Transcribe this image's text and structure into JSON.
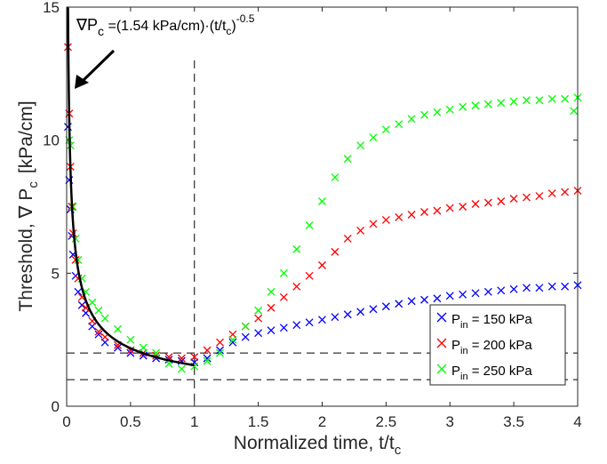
{
  "chart_data": {
    "type": "scatter",
    "title": "",
    "xlabel": "Normalized time, t/t",
    "xlabel_sub": "c",
    "ylabel": "Threshold, ∇ P",
    "ylabel_sub": "c",
    "ylabel_unit": "[kPa/cm]",
    "xlim": [
      0,
      4
    ],
    "ylim": [
      0,
      15
    ],
    "xticks": [
      "0",
      "0.5",
      "1",
      "1.5",
      "2",
      "2.5",
      "3",
      "3.5",
      "4"
    ],
    "yticks": [
      "0",
      "5",
      "10",
      "15"
    ],
    "grid": false,
    "legend_position": "bottom-right",
    "annotation": {
      "lhs": "∇P",
      "lhs_sub": "c",
      "rhs": " =(1.54 kPa/cm)·(t/t",
      "rhs_sub": "c",
      "rhs_close": ")",
      "rhs_exp": "-0.5"
    },
    "reference_lines": {
      "vertical_x": 1,
      "horizontal_y": [
        2,
        1
      ]
    },
    "fit": {
      "name": "",
      "color": "#000000",
      "coef": 1.54,
      "exponent": -0.5,
      "x_range": [
        0.0105,
        1
      ]
    },
    "series": [
      {
        "legend_main": "P",
        "legend_sub": "in",
        "legend_rest": " = 150 kPa",
        "color": "#0000ff",
        "x": [
          0.01,
          0.02,
          0.03,
          0.04,
          0.05,
          0.07,
          0.09,
          0.12,
          0.15,
          0.2,
          0.25,
          0.3,
          0.4,
          0.5,
          0.6,
          0.7,
          0.8,
          0.9,
          1.0,
          1.1,
          1.2,
          1.3,
          1.4,
          1.5,
          1.6,
          1.7,
          1.8,
          1.9,
          2.0,
          2.1,
          2.2,
          2.3,
          2.4,
          2.5,
          2.6,
          2.7,
          2.8,
          2.9,
          3.0,
          3.1,
          3.2,
          3.3,
          3.4,
          3.5,
          3.6,
          3.7,
          3.8,
          3.9,
          4.0
        ],
        "y": [
          10.5,
          8.5,
          7.4,
          6.4,
          5.7,
          4.9,
          4.3,
          3.8,
          3.5,
          3.0,
          2.7,
          2.4,
          2.2,
          2.0,
          1.9,
          1.8,
          1.75,
          1.7,
          1.65,
          1.8,
          2.1,
          2.4,
          2.6,
          2.75,
          2.85,
          2.95,
          3.05,
          3.15,
          3.25,
          3.35,
          3.45,
          3.55,
          3.65,
          3.75,
          3.85,
          3.95,
          4.0,
          4.05,
          4.15,
          4.2,
          4.25,
          4.3,
          4.35,
          4.4,
          4.45,
          4.45,
          4.5,
          4.5,
          4.55
        ]
      },
      {
        "legend_main": "P",
        "legend_sub": "in",
        "legend_rest": " = 200 kPa",
        "color": "#ff0000",
        "x": [
          0.01,
          0.02,
          0.03,
          0.04,
          0.05,
          0.07,
          0.09,
          0.12,
          0.15,
          0.2,
          0.25,
          0.3,
          0.4,
          0.5,
          0.6,
          0.7,
          0.8,
          0.9,
          1.0,
          1.1,
          1.2,
          1.3,
          1.4,
          1.5,
          1.6,
          1.7,
          1.8,
          1.9,
          2.0,
          2.1,
          2.2,
          2.3,
          2.4,
          2.5,
          2.6,
          2.7,
          2.8,
          2.9,
          3.0,
          3.1,
          3.2,
          3.3,
          3.4,
          3.5,
          3.6,
          3.7,
          3.8,
          3.9,
          4.0
        ],
        "y": [
          13.5,
          11.0,
          9.0,
          7.5,
          6.5,
          5.5,
          4.8,
          4.1,
          3.7,
          3.2,
          2.8,
          2.6,
          2.3,
          2.1,
          2.0,
          1.9,
          1.85,
          1.8,
          1.85,
          2.1,
          2.4,
          2.7,
          3.0,
          3.3,
          3.7,
          4.1,
          4.5,
          4.9,
          5.3,
          5.8,
          6.3,
          6.6,
          6.85,
          7.0,
          7.1,
          7.2,
          7.3,
          7.35,
          7.45,
          7.5,
          7.6,
          7.65,
          7.7,
          7.8,
          7.85,
          7.9,
          8.0,
          8.05,
          8.1
        ]
      },
      {
        "legend_main": "P",
        "legend_sub": "in",
        "legend_rest": " = 250 kPa",
        "color": "#00ff00",
        "x": [
          0.02,
          0.03,
          0.05,
          0.07,
          0.09,
          0.12,
          0.15,
          0.2,
          0.25,
          0.3,
          0.4,
          0.5,
          0.6,
          0.7,
          0.8,
          0.9,
          1.0,
          1.1,
          1.2,
          1.3,
          1.4,
          1.5,
          1.6,
          1.7,
          1.8,
          1.9,
          2.0,
          2.1,
          2.2,
          2.3,
          2.4,
          2.5,
          2.6,
          2.7,
          2.8,
          2.9,
          3.0,
          3.1,
          3.2,
          3.3,
          3.4,
          3.5,
          3.6,
          3.7,
          3.8,
          3.9,
          3.97,
          4.0
        ],
        "y": [
          10.0,
          9.8,
          7.5,
          6.3,
          5.5,
          4.8,
          4.3,
          3.9,
          3.6,
          3.3,
          2.9,
          2.5,
          2.2,
          2.0,
          1.6,
          1.4,
          1.5,
          1.7,
          2.0,
          2.5,
          3.0,
          3.6,
          4.3,
          5.0,
          5.9,
          6.8,
          7.7,
          8.6,
          9.3,
          9.8,
          10.1,
          10.4,
          10.6,
          10.8,
          10.95,
          11.05,
          11.15,
          11.25,
          11.3,
          11.35,
          11.4,
          11.45,
          11.5,
          11.5,
          11.55,
          11.55,
          11.1,
          11.6
        ]
      }
    ]
  }
}
